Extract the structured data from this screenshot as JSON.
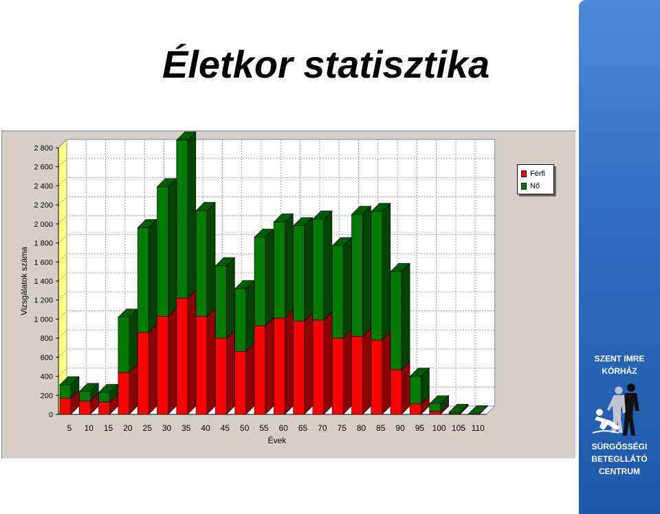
{
  "title": "Életkor statisztika",
  "logo": {
    "top_line1": "SZENT IMRE",
    "top_line2": "KÓRHÁZ",
    "bottom_line1": "SÜRGŐSSÉGI",
    "bottom_line2": "BETEGLLÁTÓ",
    "bottom_line3": "CENTRUM",
    "emblem": "emergency-care-figures-icon"
  },
  "colors": {
    "ferfi": "#ff0000",
    "no": "#007a00",
    "axis_wall": "#ffff80",
    "panel": "#d4d0c8"
  },
  "chart_data": {
    "type": "bar",
    "stacked": true,
    "three_d": true,
    "categories": [
      "5",
      "10",
      "15",
      "20",
      "25",
      "30",
      "35",
      "40",
      "45",
      "50",
      "55",
      "60",
      "65",
      "70",
      "75",
      "80",
      "85",
      "90",
      "95",
      "100",
      "105",
      "110"
    ],
    "series": [
      {
        "name": "Férfi",
        "values": [
          170,
          140,
          130,
          440,
          860,
          1030,
          1220,
          1030,
          800,
          660,
          930,
          1010,
          980,
          990,
          800,
          820,
          780,
          470,
          110,
          30,
          5,
          0
        ]
      },
      {
        "name": "Nő",
        "values": [
          140,
          100,
          100,
          580,
          1100,
          1360,
          1660,
          1110,
          760,
          660,
          930,
          1010,
          1000,
          1060,
          970,
          1280,
          1350,
          1030,
          290,
          80,
          15,
          5
        ]
      }
    ],
    "xlabel": "Évek",
    "ylabel": "Vizsgálatok száma",
    "ylim": [
      0,
      2800
    ],
    "yticks": [
      0,
      200,
      400,
      600,
      800,
      1000,
      1200,
      1400,
      1600,
      1800,
      2000,
      2200,
      2400,
      2600,
      2800
    ],
    "ytick_labels": [
      "0",
      "200",
      "400",
      "600",
      "800",
      "1 000",
      "1 200",
      "1 400",
      "1 600",
      "1 800",
      "2 000",
      "2 200",
      "2 400",
      "2 600",
      "2 800"
    ],
    "grid": true,
    "legend_position": "top-right"
  }
}
